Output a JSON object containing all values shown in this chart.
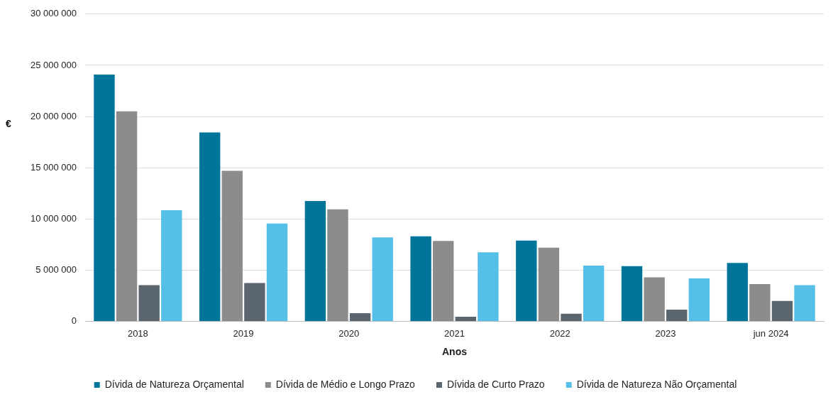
{
  "chart_data": {
    "type": "bar",
    "xlabel": "Anos",
    "ylabel": "€",
    "categories": [
      "2018",
      "2019",
      "2020",
      "2021",
      "2022",
      "2023",
      "jun 2024"
    ],
    "series": [
      {
        "name": "Dívida de Natureza Orçamental",
        "color": "#00759a",
        "values": [
          24100000,
          18450000,
          11750000,
          8300000,
          7900000,
          5400000,
          5700000
        ]
      },
      {
        "name": "Dívida de Médio e Longo Prazo",
        "color": "#8c8c8c",
        "values": [
          20500000,
          14700000,
          10950000,
          7850000,
          7200000,
          4300000,
          3650000
        ]
      },
      {
        "name": "Dívida de Curto Prazo",
        "color": "#5a6570",
        "values": [
          3550000,
          3750000,
          800000,
          450000,
          750000,
          1150000,
          2000000
        ]
      },
      {
        "name": "Dívida de Natureza Não Orçamental",
        "color": "#55bfe7",
        "values": [
          10850000,
          9550000,
          8200000,
          6750000,
          5450000,
          4200000,
          3550000
        ]
      }
    ],
    "ylim": [
      0,
      30000000
    ],
    "yticks": [
      {
        "value": 0,
        "label": "0"
      },
      {
        "value": 5000000,
        "label": "5 000 000"
      },
      {
        "value": 10000000,
        "label": "10 000 000"
      },
      {
        "value": 15000000,
        "label": "15 000 000"
      },
      {
        "value": 20000000,
        "label": "20 000 000"
      },
      {
        "value": 25000000,
        "label": "25 000 000"
      },
      {
        "value": 30000000,
        "label": "30 000 000"
      }
    ],
    "grid": "y",
    "legend": "bottom"
  }
}
